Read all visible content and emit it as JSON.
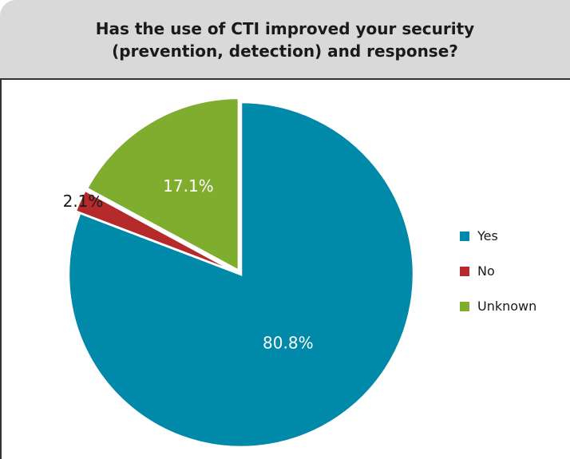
{
  "header": {
    "title_line1": "Has the use of CTI improved your security",
    "title_line2": "(prevention, detection) and response?"
  },
  "chart_data": {
    "type": "pie",
    "title": "Has the use of CTI improved your security (prevention, detection) and response?",
    "slices": [
      {
        "label": "Yes",
        "value": 80.8,
        "display": "80.8%",
        "color": "#0089a8",
        "exploded": false
      },
      {
        "label": "No",
        "value": 2.1,
        "display": "2.1%",
        "color": "#b52a2a",
        "exploded": true
      },
      {
        "label": "Unknown",
        "value": 17.1,
        "display": "17.1%",
        "color": "#7fad2e",
        "exploded": true
      }
    ],
    "legend_position": "right"
  }
}
